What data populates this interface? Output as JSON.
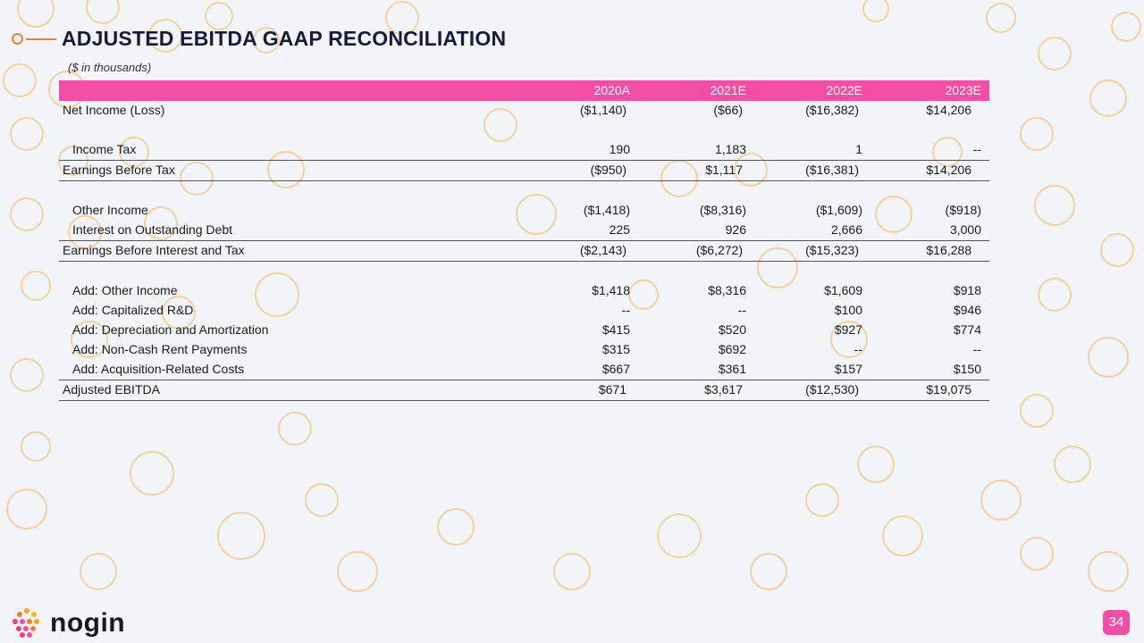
{
  "title": "ADJUSTED EBITDA GAAP RECONCILIATION",
  "subtitle": "($ in thousands)",
  "columns": [
    "2020A",
    "2021E",
    "2022E",
    "2023E"
  ],
  "rows": [
    {
      "label": "Net Income (Loss)",
      "values": [
        "($1,140)",
        "($66)",
        "($16,382)",
        "$14,206"
      ]
    },
    {
      "label": "Income Tax",
      "values": [
        "190",
        "1,183",
        "1",
        "--"
      ]
    },
    {
      "label": "Earnings Before Tax",
      "values": [
        "($950)",
        "$1,117",
        "($16,381)",
        "$14,206"
      ]
    },
    {
      "label": "Other Income",
      "values": [
        "($1,418)",
        "($8,316)",
        "($1,609)",
        "($918)"
      ]
    },
    {
      "label": "Interest on Outstanding Debt",
      "values": [
        "225",
        "926",
        "2,666",
        "3,000"
      ]
    },
    {
      "label": "Earnings Before Interest and Tax",
      "values": [
        "($2,143)",
        "($6,272)",
        "($15,323)",
        "$16,288"
      ]
    },
    {
      "label": "Add: Other Income",
      "values": [
        "$1,418",
        "$8,316",
        "$1,609",
        "$918"
      ]
    },
    {
      "label": "Add: Capitalized R&D",
      "values": [
        "--",
        "--",
        "$100",
        "$946"
      ]
    },
    {
      "label": "Add: Depreciation and Amortization",
      "values": [
        "$415",
        "$520",
        "$927",
        "$774"
      ]
    },
    {
      "label": "Add: Non-Cash Rent Payments",
      "values": [
        "$315",
        "$692",
        "--",
        "--"
      ]
    },
    {
      "label": "Add: Acquisition-Related Costs",
      "values": [
        "$667",
        "$361",
        "$157",
        "$150"
      ]
    },
    {
      "label": "Adjusted EBITDA",
      "values": [
        "$671",
        "$3,617",
        "($12,530)",
        "$19,075"
      ]
    }
  ],
  "logo_text": "nogin",
  "page_number": "34",
  "colors": {
    "accent": "#f24ea6",
    "title_line": "#e9823a",
    "circles": "#f0d2a6"
  }
}
